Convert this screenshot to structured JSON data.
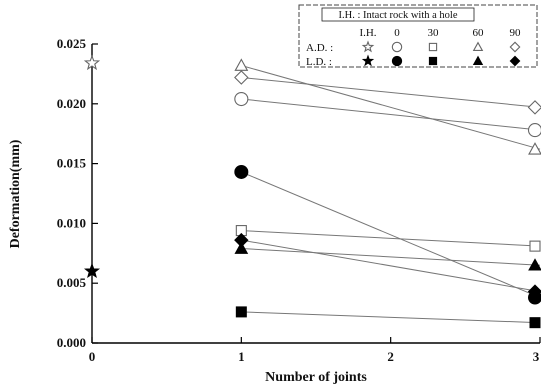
{
  "chart_data": {
    "type": "scatter",
    "xlabel": "Number of joints",
    "ylabel": "Deformation(mm)",
    "xlim": [
      0,
      3
    ],
    "ylim": [
      0,
      0.025
    ],
    "xticks": [
      "0",
      "1",
      "2",
      "3"
    ],
    "yticks": [
      "0.000",
      "0.005",
      "0.010",
      "0.015",
      "0.020",
      "0.025"
    ],
    "legend": {
      "placement": "top-right",
      "title": "I.H. : Intact rock with a hole",
      "header": [
        "I.H.",
        "0",
        "30",
        "60",
        "90"
      ],
      "rows": [
        {
          "label": "A.D. :",
          "symbols": [
            "star-open",
            "circle-open",
            "square-open",
            "triangle-open",
            "diamond-open"
          ]
        },
        {
          "label": "L.D. :",
          "symbols": [
            "star-filled",
            "circle-filled",
            "square-filled",
            "triangle-filled",
            "diamond-filled"
          ]
        }
      ]
    },
    "series": [
      {
        "group": "A.D.",
        "angle": "I.H.",
        "marker": "star-open",
        "x": [
          0
        ],
        "y": [
          0.0234
        ]
      },
      {
        "group": "L.D.",
        "angle": "I.H.",
        "marker": "star-filled",
        "x": [
          0
        ],
        "y": [
          0.006
        ]
      },
      {
        "group": "A.D.",
        "angle": "0",
        "marker": "circle-open",
        "x": [
          1,
          3
        ],
        "y": [
          0.0204,
          0.0178
        ]
      },
      {
        "group": "A.D.",
        "angle": "30",
        "marker": "square-open",
        "x": [
          1,
          3
        ],
        "y": [
          0.0094,
          0.0081
        ]
      },
      {
        "group": "A.D.",
        "angle": "60",
        "marker": "triangle-open",
        "x": [
          1,
          3
        ],
        "y": [
          0.0232,
          0.0162
        ]
      },
      {
        "group": "A.D.",
        "angle": "90",
        "marker": "diamond-open",
        "x": [
          1,
          3
        ],
        "y": [
          0.0222,
          0.0197
        ]
      },
      {
        "group": "L.D.",
        "angle": "0",
        "marker": "circle-filled",
        "x": [
          1,
          3
        ],
        "y": [
          0.0143,
          0.0038
        ]
      },
      {
        "group": "L.D.",
        "angle": "30",
        "marker": "square-filled",
        "x": [
          1,
          3
        ],
        "y": [
          0.0026,
          0.0017
        ]
      },
      {
        "group": "L.D.",
        "angle": "60",
        "marker": "triangle-filled",
        "x": [
          1,
          3
        ],
        "y": [
          0.0079,
          0.0065
        ]
      },
      {
        "group": "L.D.",
        "angle": "90",
        "marker": "diamond-filled",
        "x": [
          1,
          3
        ],
        "y": [
          0.0086,
          0.0043
        ]
      }
    ],
    "grid": false
  }
}
